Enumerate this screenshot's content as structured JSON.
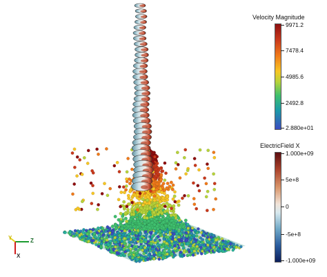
{
  "scene": {
    "description_free": true,
    "colormap_velocity": [
      "#3b4cc0",
      "#1b9aa8",
      "#3fbf6e",
      "#b7d33a",
      "#f7c624",
      "#f07a1a",
      "#c9391c",
      "#8f0f10"
    ],
    "colormap_efield": [
      "#0b1e5b",
      "#2a5c9e",
      "#6fa8c7",
      "#d7e8ee",
      "#f1e3d7",
      "#d9966b",
      "#a9402a",
      "#5c0f10"
    ]
  },
  "colorbar_velocity": {
    "title": "Velocity Magnitude",
    "labels": [
      "9971.2",
      "7478.4",
      "4985.6",
      "2492.8",
      "2.880e+01"
    ]
  },
  "colorbar_efield": {
    "title": "ElectricField X",
    "labels": [
      "1.000e+09",
      "5e+8",
      "0",
      "-5e+8",
      "-1.000e+09"
    ]
  },
  "orientation_axes": {
    "y_label": "Y",
    "z_label": "Z",
    "x_label": "X",
    "y_color": "#e6d320",
    "z_color": "#1a9a2e",
    "x_color": "#d11c1c"
  }
}
